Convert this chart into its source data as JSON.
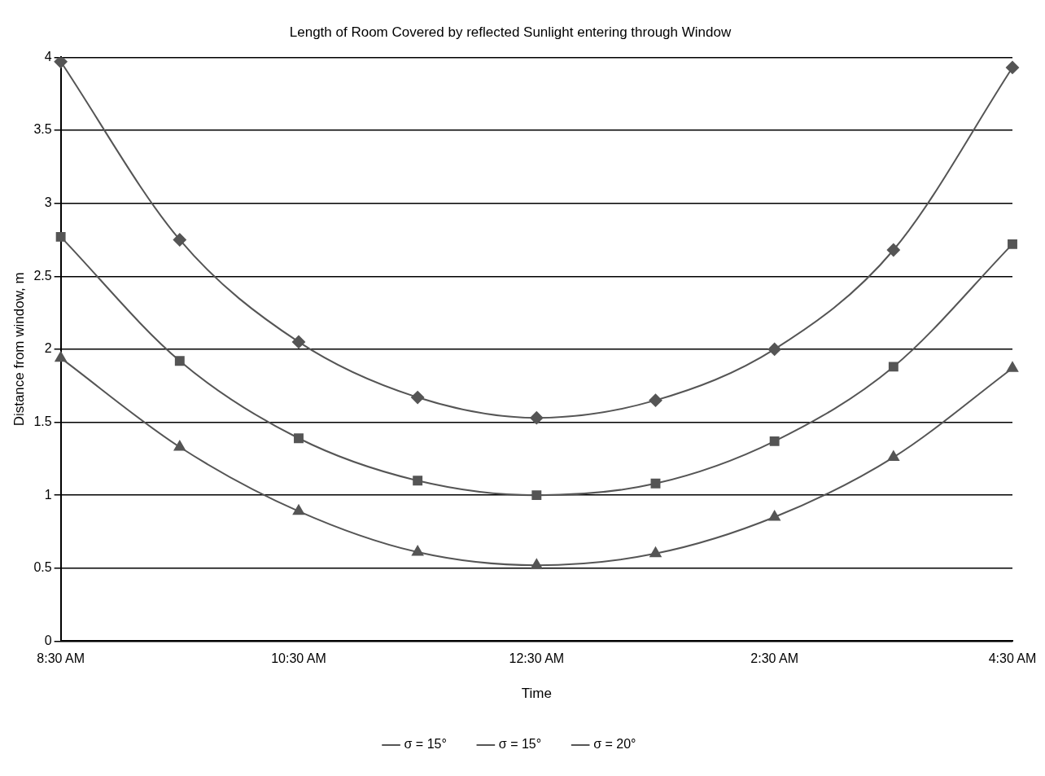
{
  "chart_data": {
    "type": "line",
    "title": "Length of Room Covered by reflected Sunlight entering through Window",
    "xlabel": "Time",
    "ylabel": "Distance from window, m",
    "categories": [
      "8:30 AM",
      null,
      "10:30 AM",
      null,
      "12:30 AM",
      null,
      "2:30 AM",
      null,
      "4:30 AM"
    ],
    "ylim": [
      0,
      4
    ],
    "yticks": [
      0,
      0.5,
      1,
      1.5,
      2,
      2.5,
      3,
      3.5,
      4
    ],
    "grid": "y",
    "legend": "bottom",
    "line_style": "solid",
    "series": [
      {
        "name": "σ = 15°",
        "color": "#555555",
        "marker": "diamond",
        "values": [
          3.97,
          2.75,
          2.05,
          1.67,
          1.53,
          1.65,
          2.0,
          2.68,
          3.93
        ]
      },
      {
        "name": "σ = 15°",
        "color": "#555555",
        "marker": "square",
        "values": [
          2.77,
          1.92,
          1.39,
          1.1,
          1.0,
          1.08,
          1.37,
          1.88,
          2.72
        ]
      },
      {
        "name": "σ = 20°",
        "color": "#555555",
        "marker": "triangle",
        "values": [
          1.94,
          1.33,
          0.89,
          0.61,
          0.52,
          0.6,
          0.85,
          1.26,
          1.87
        ]
      }
    ]
  }
}
